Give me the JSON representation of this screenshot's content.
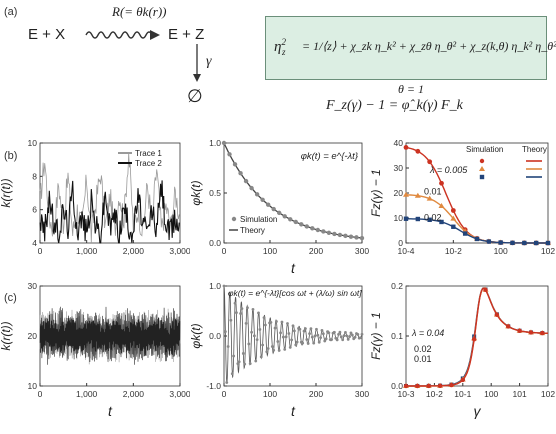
{
  "labels": {
    "a": "(a)",
    "b": "(b)",
    "c": "(c)"
  },
  "scheme": {
    "reactants": "E + X",
    "products": "E + Z",
    "rate": "R(= θk(r))",
    "decay_rate": "γ",
    "sink": "∅"
  },
  "equation_box": {
    "lhs": "η",
    "eq_main": "= 1/⟨z⟩ + χ_zk η_k² + χ_zθ η_θ² + χ_z(k,θ) η_k² η_θ²",
    "theta_eq": "θ = 1",
    "fano": "F_z(γ) − 1 = φ̂_k(γ) F_k"
  },
  "chart_data": [
    {
      "id": "b1",
      "type": "line",
      "ylabel": "k(r(t))",
      "xlabel": "",
      "xlim": [
        0,
        3000
      ],
      "ylim": [
        4,
        10
      ],
      "xticks": [
        "0",
        "1,000",
        "2,000",
        "3,000"
      ],
      "yticks": [
        "4",
        "6",
        "8",
        "10"
      ],
      "legend": "top-right",
      "series": [
        {
          "name": "Trace 1",
          "color": "#9a9a9a",
          "x": [
            0,
            100,
            200,
            300,
            400,
            500,
            600,
            700,
            800,
            900,
            1000,
            1100,
            1200,
            1300,
            1400,
            1500,
            1600,
            1700,
            1800,
            1900,
            2000,
            2100,
            2200,
            2300,
            2400,
            2500,
            2600,
            2700,
            2800,
            2900,
            3000
          ],
          "values": [
            6.5,
            9,
            5.5,
            4.8,
            7.5,
            5.2,
            8,
            4.6,
            6,
            5,
            7.8,
            4.5,
            6.5,
            8.2,
            5,
            6.8,
            4.7,
            7,
            5.5,
            9.5,
            5,
            6,
            4.6,
            7.5,
            5.2,
            8.5,
            4.8,
            6.2,
            5,
            7,
            5.5
          ]
        },
        {
          "name": "Trace 2",
          "color": "#111111",
          "x": [
            0,
            100,
            200,
            300,
            400,
            500,
            600,
            700,
            800,
            900,
            1000,
            1100,
            1200,
            1300,
            1400,
            1500,
            1600,
            1700,
            1800,
            1900,
            2000,
            2100,
            2200,
            2300,
            2400,
            2500,
            2600,
            2700,
            2800,
            2900,
            3000
          ],
          "values": [
            5.5,
            4.6,
            6.8,
            5,
            4.5,
            6,
            5,
            7.2,
            4.8,
            5.5,
            4.6,
            6.5,
            5,
            4.5,
            7,
            4.8,
            5.8,
            4.5,
            6.2,
            5,
            4.7,
            6.8,
            5.2,
            4.5,
            6,
            4.8,
            7.5,
            5,
            4.6,
            5.5,
            4.8
          ]
        }
      ]
    },
    {
      "id": "b2",
      "type": "line",
      "ylabel": "φk(t)",
      "xlabel": "t",
      "xlim": [
        0,
        300
      ],
      "ylim": [
        0,
        1.0
      ],
      "xticks": [
        "0",
        "100",
        "200",
        "300"
      ],
      "yticks": [
        "0.0",
        "0.5",
        "1.0"
      ],
      "formula": "φk(t) = e^{-λt}",
      "lambda": 0.01,
      "legend": "bottom-left",
      "series": [
        {
          "name": "Simulation",
          "color": "#888888"
        },
        {
          "name": "Theory",
          "color": "#444444"
        }
      ]
    },
    {
      "id": "b3",
      "type": "line",
      "ylabel": "Fz(γ) − 1",
      "xlabel": "",
      "xscale": "log",
      "xlim": [
        0.0001,
        100
      ],
      "ylim": [
        0,
        40
      ],
      "xticks": [
        "10^-4",
        "10^-2",
        "10^0",
        "10^2"
      ],
      "yticks": [
        "0",
        "10",
        "20",
        "30",
        "40"
      ],
      "legend": "top-right",
      "legend_headers": [
        "Simulation",
        "Theory"
      ],
      "annotation": "λ = 0.005",
      "series": [
        {
          "name": "0.005",
          "color": "#cc3322",
          "fk": 39,
          "lambda": 0.005
        },
        {
          "name": "0.01",
          "color": "#e08a40",
          "fk": 19.5,
          "lambda": 0.01
        },
        {
          "name": "0.02",
          "color": "#22447a",
          "fk": 9.75,
          "lambda": 0.02
        }
      ]
    },
    {
      "id": "c1",
      "type": "line",
      "ylabel": "k(r(t))",
      "xlabel": "t",
      "xlim": [
        0,
        3000
      ],
      "ylim": [
        10,
        30
      ],
      "xticks": [
        "0",
        "1,000",
        "2,000",
        "3,000"
      ],
      "yticks": [
        "10",
        "20",
        "30"
      ]
    },
    {
      "id": "c2",
      "type": "line",
      "ylabel": "φk(t)",
      "xlabel": "t",
      "xlim": [
        0,
        300
      ],
      "ylim": [
        -1.0,
        1.0
      ],
      "xticks": [
        "0",
        "100",
        "200",
        "300"
      ],
      "yticks": [
        "-1.0",
        "0.0",
        "1.0"
      ],
      "formula": "φk(t) = e^{-λt}[cos ωt + (λ/ω) sin ωt]",
      "lambda": 0.01,
      "omega": 0.5
    },
    {
      "id": "c3",
      "type": "line",
      "ylabel": "Fz(γ) − 1",
      "xlabel": "γ",
      "xscale": "log",
      "xlim": [
        0.001,
        100
      ],
      "ylim": [
        0,
        0.2
      ],
      "xticks": [
        "10^-3",
        "10^-2",
        "10^-1",
        "10^0",
        "10^1",
        "10^2"
      ],
      "yticks": [
        "0.0",
        "0.1",
        "0.2"
      ],
      "annotation": "λ = 0.04",
      "series": [
        {
          "name": "0.04",
          "color": "#22447a",
          "lambda": 0.04
        },
        {
          "name": "0.02",
          "color": "#e08a40",
          "lambda": 0.02
        },
        {
          "name": "0.01",
          "color": "#cc3322",
          "lambda": 0.01
        }
      ]
    }
  ]
}
